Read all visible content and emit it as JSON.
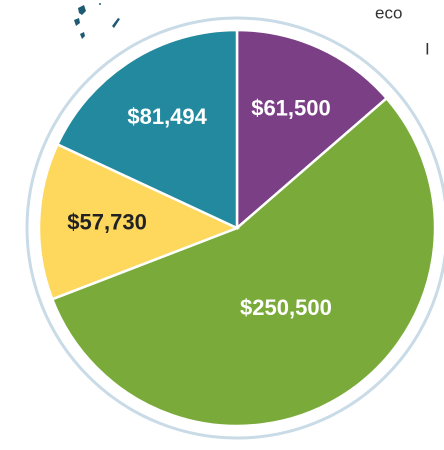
{
  "chart_data": {
    "type": "pie",
    "categories": [
      null,
      null,
      null,
      null
    ],
    "values": [
      61500,
      250500,
      57730,
      81494
    ],
    "value_labels": [
      "$61,500",
      "$250,500",
      "$57,730",
      "$81,494"
    ],
    "colors": [
      "#7b3f86",
      "#7aab3a",
      "#fdd85d",
      "#22899e"
    ],
    "label_colors": [
      "#ffffff",
      "#ffffff",
      "#222222",
      "#ffffff"
    ]
  },
  "text_fragments": [
    "eco",
    "I"
  ]
}
